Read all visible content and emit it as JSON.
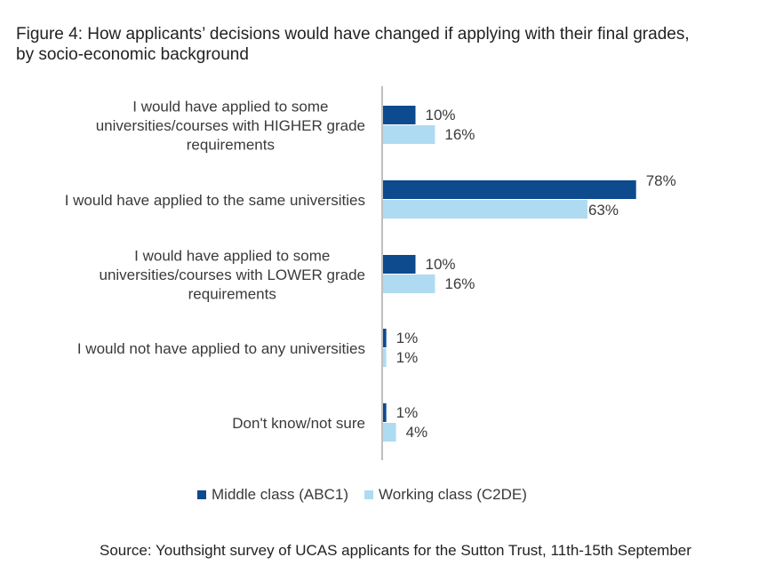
{
  "title_line1": "Figure 4: How applicants’ decisions would have changed if applying with their final grades,",
  "title_line2": "by socio-economic background",
  "source": "Source: Youthsight survey of UCAS applicants for the Sutton Trust, 11th-15th September",
  "colors": {
    "middle": "#0d4a8e",
    "working": "#aedbf1",
    "axis": "#bfbfbf"
  },
  "chart_data": {
    "type": "bar",
    "orientation": "horizontal",
    "categories": [
      [
        "I would have applied to some",
        "universities/courses with HIGHER grade",
        "requirements"
      ],
      [
        "I would have applied to the same universities"
      ],
      [
        "I would have applied to some",
        "universities/courses with LOWER grade",
        "requirements"
      ],
      [
        "I would not have applied to any universities"
      ],
      [
        "Don't know/not sure"
      ]
    ],
    "series": [
      {
        "name": "Middle class (ABC1)",
        "values": [
          10,
          78,
          10,
          1,
          1
        ],
        "labels": [
          "10%",
          "78%",
          "10%",
          "1%",
          "1%"
        ]
      },
      {
        "name": "Working class (C2DE)",
        "values": [
          16,
          63,
          16,
          1,
          4
        ],
        "labels": [
          "16%",
          "63%",
          "16%",
          "1%",
          "4%"
        ]
      }
    ],
    "unit": "%",
    "xlim": [
      0,
      100
    ],
    "legend_position": "bottom"
  }
}
